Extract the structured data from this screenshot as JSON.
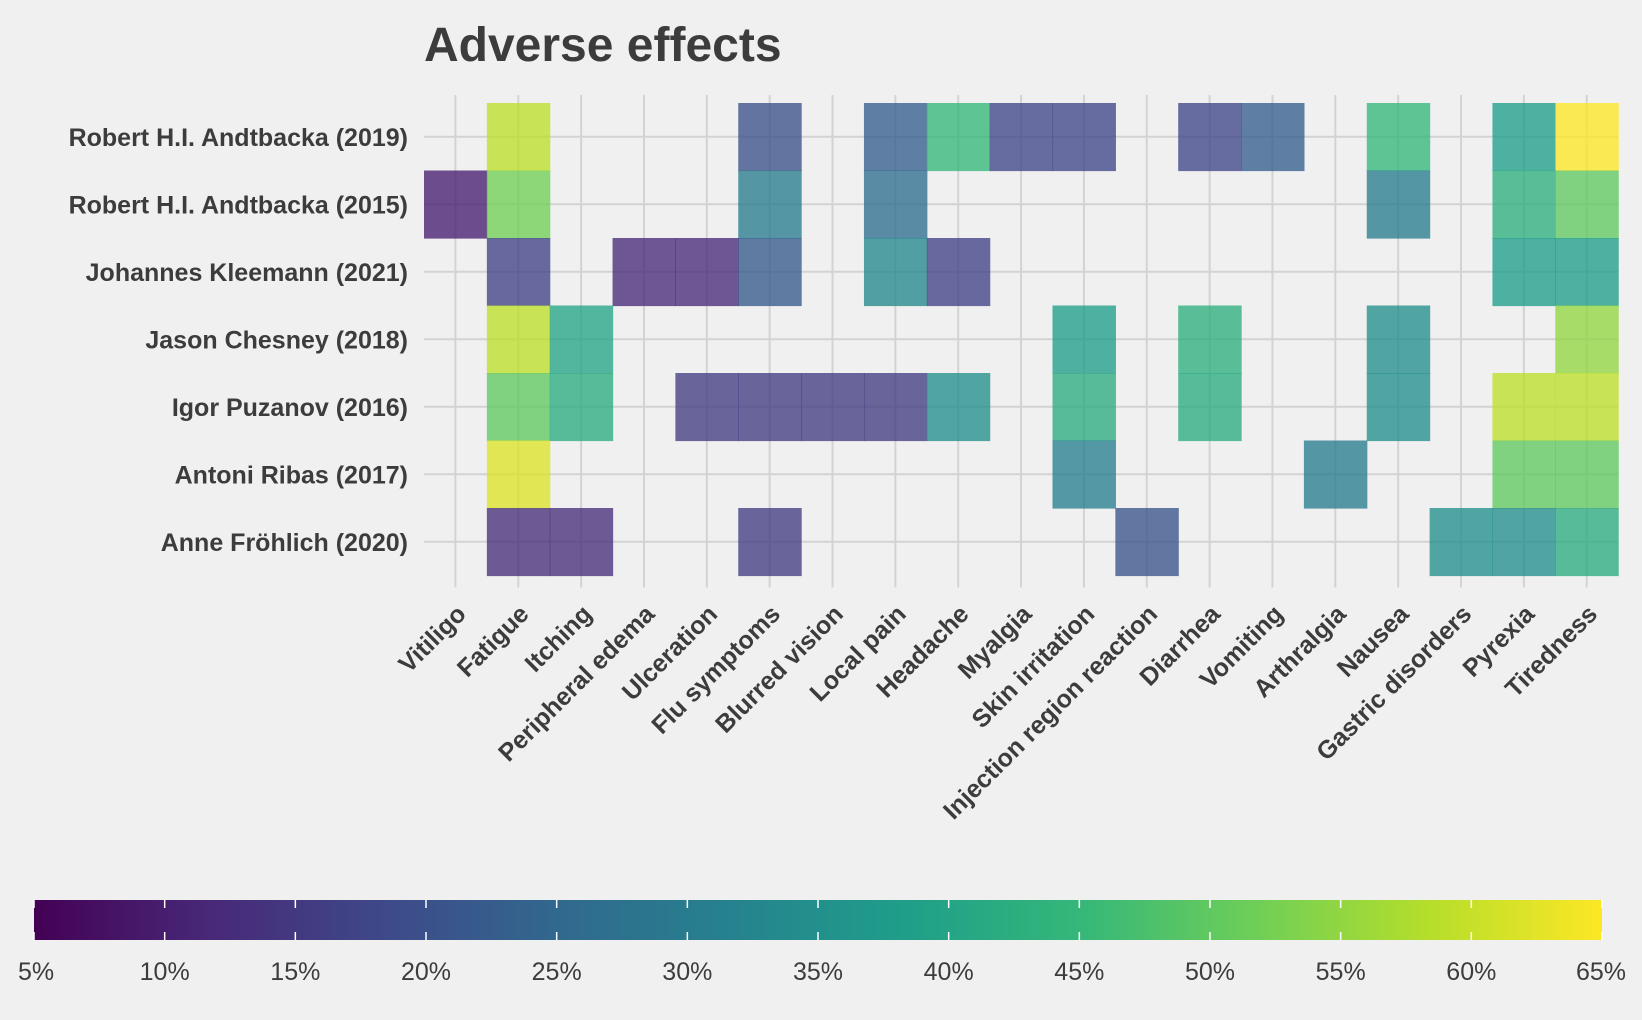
{
  "chart_data": {
    "type": "heatmap",
    "title": "Adverse effects",
    "xlabel": "",
    "ylabel": "",
    "x_categories": [
      "Vitiligo",
      "Fatigue",
      "Itching",
      "Peripheral edema",
      "Ulceration",
      "Flu symptoms",
      "Blurred vision",
      "Local pain",
      "Headache",
      "Myalgia",
      "Skin irritation",
      "Injection region reaction",
      "Diarrhea",
      "Vomiting",
      "Arthralgia",
      "Nausea",
      "Gastric disorders",
      "Pyrexia",
      "Tiredness"
    ],
    "y_categories": [
      "Robert H.I. Andtbacka (2019)",
      "Robert H.I. Andtbacka (2015)",
      "Johannes Kleemann (2021)",
      "Jason Chesney (2018)",
      "Igor Puzanov (2016)",
      "Antoni Ribas (2017)",
      "Anne Fröhlich (2020)"
    ],
    "values": [
      [
        null,
        59,
        null,
        null,
        null,
        20,
        null,
        23,
        45,
        18,
        18,
        null,
        18,
        23,
        null,
        45,
        null,
        38,
        65
      ],
      [
        10,
        52,
        null,
        null,
        null,
        30,
        null,
        27,
        null,
        null,
        null,
        null,
        null,
        null,
        null,
        30,
        null,
        43,
        50
      ],
      [
        null,
        17,
        null,
        12,
        12,
        22,
        null,
        33,
        17,
        null,
        null,
        null,
        null,
        null,
        null,
        null,
        null,
        38,
        38
      ],
      [
        null,
        59,
        40,
        null,
        null,
        null,
        null,
        null,
        null,
        null,
        38,
        null,
        43,
        null,
        null,
        35,
        null,
        null,
        55
      ],
      [
        null,
        50,
        42,
        null,
        16,
        16,
        16,
        16,
        35,
        null,
        42,
        null,
        42,
        null,
        null,
        35,
        null,
        59,
        59
      ],
      [
        null,
        62,
        null,
        null,
        null,
        null,
        null,
        null,
        null,
        null,
        31,
        null,
        null,
        null,
        30,
        null,
        null,
        50,
        50
      ],
      [
        null,
        13,
        13,
        null,
        null,
        16,
        null,
        null,
        null,
        null,
        null,
        21,
        null,
        null,
        null,
        null,
        35,
        35,
        42
      ]
    ],
    "colorbar": {
      "min": 5,
      "max": 65,
      "tick_values": [
        5,
        10,
        15,
        20,
        25,
        30,
        35,
        40,
        45,
        50,
        55,
        60,
        65
      ],
      "tick_labels": [
        "5%",
        "10%",
        "15%",
        "20%",
        "25%",
        "30%",
        "35%",
        "40%",
        "45%",
        "50%",
        "55%",
        "60%",
        "65%"
      ],
      "colorscale": [
        "#440154",
        "#482878",
        "#3e4989",
        "#31688e",
        "#26828e",
        "#1f9e89",
        "#35b779",
        "#6ece58",
        "#b5de2b",
        "#fde725"
      ]
    },
    "colors": {
      "background": "#f0f0f0",
      "grid": "#d3d3d3",
      "text": "#3c3c3c"
    },
    "grid": true,
    "legend": "bottom"
  }
}
